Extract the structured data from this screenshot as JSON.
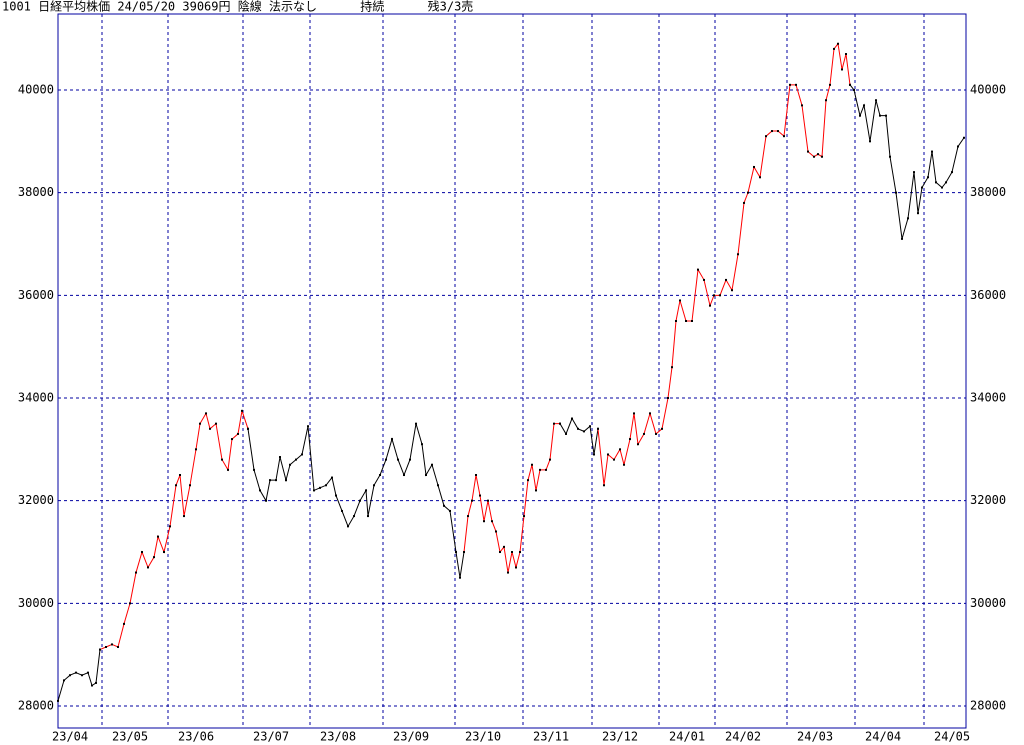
{
  "chart_data": {
    "type": "line",
    "title": "1001 日経平均株価 24/05/20 39069円 陰線 法示なし      持続      残3/3売",
    "xlim": [
      0,
      454
    ],
    "ylim": [
      27572,
      41480
    ],
    "yticks": [
      28000,
      30000,
      32000,
      34000,
      36000,
      38000,
      40000
    ],
    "xticks": [
      {
        "value": 0,
        "label": "23/04"
      },
      {
        "value": 22,
        "label": "23/05"
      },
      {
        "value": 55,
        "label": "23/06"
      },
      {
        "value": 92.5,
        "label": "23/07"
      },
      {
        "value": 126,
        "label": "23/08"
      },
      {
        "value": 162.5,
        "label": "23/09"
      },
      {
        "value": 198.5,
        "label": "23/10"
      },
      {
        "value": 232.5,
        "label": "23/11"
      },
      {
        "value": 267,
        "label": "23/12"
      },
      {
        "value": 300.5,
        "label": "24/01"
      },
      {
        "value": 328.5,
        "label": "24/02"
      },
      {
        "value": 364.5,
        "label": "24/03"
      },
      {
        "value": 398.5,
        "label": "24/04"
      },
      {
        "value": 433,
        "label": "24/05"
      }
    ],
    "grid": true,
    "series": [
      {
        "color": "#000000",
        "x": [
          0,
          3,
          6,
          9,
          12,
          15,
          17,
          19,
          21
        ],
        "values": [
          28100,
          28500,
          28600,
          28650,
          28600,
          28650,
          28400,
          28450,
          29100
        ]
      },
      {
        "color": "#ff0000",
        "x": [
          21,
          24,
          27,
          30,
          33,
          36,
          39,
          42,
          45,
          48,
          50,
          53,
          56,
          59,
          61,
          63,
          66,
          69,
          71,
          74,
          76,
          79,
          82,
          85,
          87,
          90,
          92,
          95
        ],
        "values": [
          29100,
          29150,
          29200,
          29150,
          29600,
          30000,
          30600,
          31000,
          30700,
          30900,
          31300,
          31000,
          31500,
          32300,
          32500,
          31700,
          32300,
          33000,
          33500,
          33700,
          33400,
          33500,
          32800,
          32600,
          33200,
          33300,
          33750,
          33400
        ]
      },
      {
        "color": "#000000",
        "x": [
          95,
          98,
          101,
          104,
          106,
          109,
          111,
          114,
          116,
          119,
          122,
          125,
          128,
          131,
          134,
          137,
          139,
          142,
          145,
          148,
          151,
          154,
          155,
          158,
          161,
          164,
          167,
          170,
          173,
          176,
          179,
          182,
          184,
          187,
          190,
          193,
          196,
          199,
          201,
          203
        ],
        "values": [
          33400,
          32600,
          32200,
          32000,
          32400,
          32400,
          32850,
          32400,
          32700,
          32800,
          32900,
          33450,
          32200,
          32250,
          32300,
          32450,
          32100,
          31800,
          31500,
          31700,
          32000,
          32200,
          31700,
          32300,
          32500,
          32800,
          33200,
          32800,
          32500,
          32800,
          33500,
          33100,
          32500,
          32700,
          32300,
          31900,
          31800,
          31000,
          30500,
          31000
        ]
      },
      {
        "color": "#ff0000",
        "x": [
          203,
          205,
          207,
          209,
          211,
          213,
          215,
          217,
          219,
          221,
          223,
          225,
          227,
          229,
          231,
          233,
          235,
          237,
          239,
          241,
          244,
          246,
          248,
          251
        ],
        "values": [
          31000,
          31700,
          32000,
          32500,
          32100,
          31600,
          32000,
          31600,
          31400,
          31000,
          31100,
          30600,
          31000,
          30700,
          31000,
          31700,
          32400,
          32700,
          32200,
          32600,
          32600,
          32800,
          33500,
          33500
        ]
      },
      {
        "color": "#000000",
        "x": [
          251,
          254,
          257,
          260,
          263,
          266,
          268,
          270
        ],
        "values": [
          33500,
          33300,
          33600,
          33400,
          33350,
          33450,
          32900,
          33400
        ]
      },
      {
        "color": "#ff0000",
        "x": [
          270,
          273,
          275,
          278,
          281,
          283,
          286,
          288,
          290,
          293,
          296,
          299,
          302,
          305,
          307,
          309,
          311,
          314,
          317,
          320,
          323,
          326,
          328,
          331,
          334,
          337,
          340,
          343,
          345,
          348,
          351,
          354,
          357,
          360,
          363,
          366,
          369,
          372,
          375,
          378,
          380,
          382,
          384,
          386,
          388,
          390,
          392,
          394,
          396
        ],
        "values": [
          33400,
          32300,
          32900,
          32800,
          33000,
          32700,
          33200,
          33700,
          33100,
          33300,
          33700,
          33300,
          33400,
          34000,
          34600,
          35500,
          35900,
          35500,
          35500,
          36500,
          36300,
          35800,
          36000,
          36000,
          36300,
          36100,
          36800,
          37800,
          38000,
          38500,
          38300,
          39100,
          39200,
          39200,
          39100,
          40100,
          40100,
          39700,
          38800,
          38700,
          38750,
          38700,
          39800,
          40100,
          40800,
          40900,
          40400,
          40700,
          40100
        ]
      },
      {
        "color": "#000000",
        "x": [
          396,
          398,
          401,
          403,
          406,
          409,
          411,
          414,
          416,
          419,
          422,
          425,
          428,
          430,
          432,
          435,
          437,
          439,
          442,
          444,
          447,
          450,
          453
        ],
        "values": [
          40100,
          40000,
          39500,
          39700,
          39000,
          39800,
          39500,
          39500,
          38700,
          38000,
          37100,
          37500,
          38400,
          37600,
          38100,
          38300,
          38800,
          38200,
          38100,
          38200,
          38400,
          38900,
          39069
        ]
      }
    ]
  }
}
